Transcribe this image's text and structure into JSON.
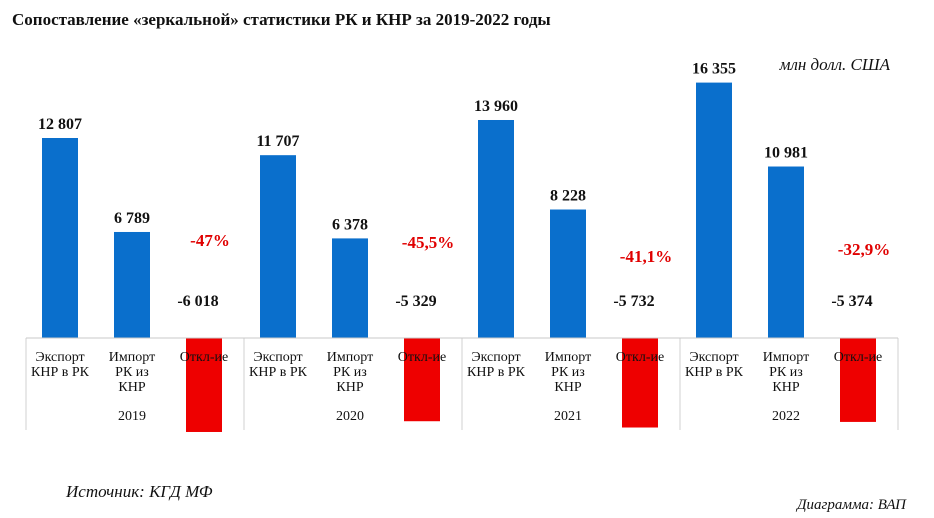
{
  "chart_data": {
    "type": "bar",
    "title": "Сопоставление «зеркальной» статистики РК и КНР  за 2019-2022 годы",
    "unit": "млн долл. США",
    "categories": [
      "2019",
      "2020",
      "2021",
      "2022"
    ],
    "series": [
      {
        "name": "Экспорт КНР в РК",
        "label_lines": [
          "Экспорт",
          "КНР в РК"
        ],
        "values": [
          12807,
          11707,
          13960,
          16355
        ],
        "labels": [
          "12 807",
          "11 707",
          "13 960",
          "16 355"
        ],
        "color": "#0a6fcc"
      },
      {
        "name": "Импорт РК из КНР",
        "label_lines": [
          "Импорт",
          "РК из",
          "КНР"
        ],
        "values": [
          6789,
          6378,
          8228,
          10981
        ],
        "labels": [
          "6 789",
          "6 378",
          "8 228",
          "10 981"
        ],
        "color": "#0a6fcc"
      },
      {
        "name": "Откл-ие",
        "label_lines": [
          "Откл-ие"
        ],
        "values": [
          -6018,
          -5329,
          -5732,
          -5374
        ],
        "labels": [
          "-6 018",
          "-5 329",
          "-5 732",
          "-5 374"
        ],
        "color": "#ee0000"
      }
    ],
    "percent_labels": [
      "-47%",
      "-45,5%",
      "-41,1%",
      "-32,9%"
    ],
    "ylim": [
      -6500,
      17000
    ],
    "grid": false,
    "legend": "none"
  },
  "footer": {
    "source": "Источник: КГД МФ",
    "credit": "Диаграмма: ВАП"
  }
}
